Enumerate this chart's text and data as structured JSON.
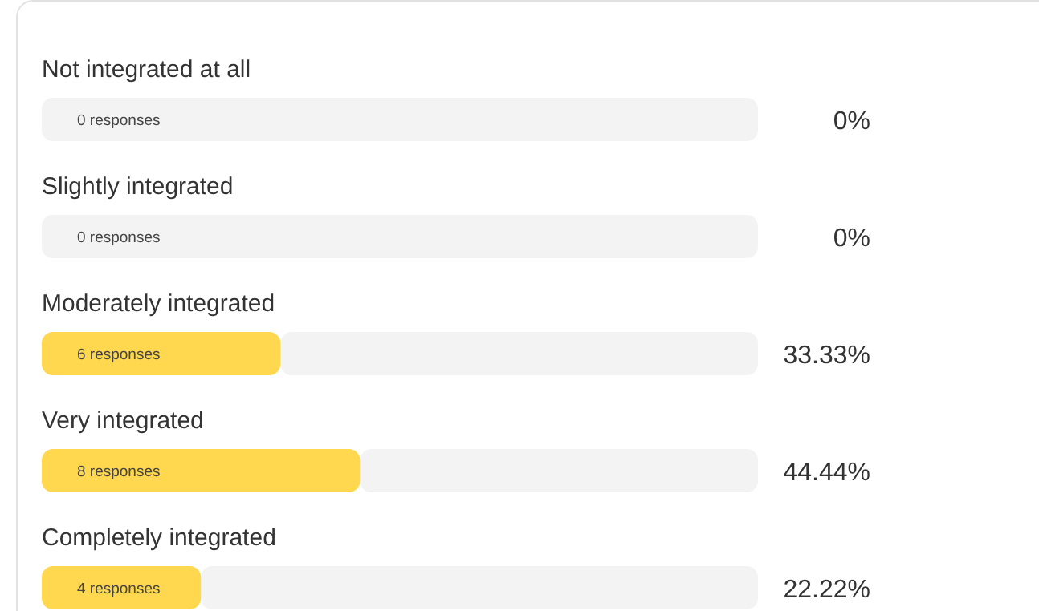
{
  "chart_data": {
    "type": "bar",
    "orientation": "horizontal",
    "stacked": true,
    "categories": [
      "Not integrated at all",
      "Slightly integrated",
      "Moderately integrated",
      "Very integrated",
      "Completely integrated"
    ],
    "series": [
      {
        "color": "#ffd84f",
        "values": [
          0,
          0,
          33.33,
          44.44,
          22.22
        ],
        "value_labels": [
          "0%",
          "0%",
          "33.33%",
          "44.44%",
          "22.22%"
        ]
      },
      {
        "color": "#f3f3f3",
        "values": [
          100,
          100,
          66.67,
          55.56,
          77.78
        ]
      }
    ],
    "xlim": [
      0,
      100
    ],
    "annotations": [
      "0 responses",
      "0 responses",
      "6 responses",
      "8 responses",
      "4 responses"
    ]
  }
}
